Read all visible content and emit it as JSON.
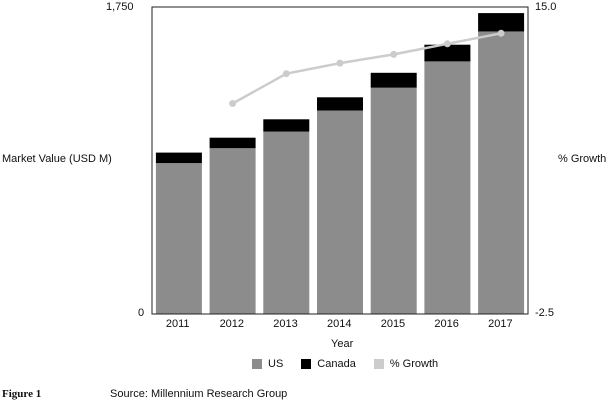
{
  "chart_data": {
    "type": "bar",
    "stacked": true,
    "categories": [
      "2011",
      "2012",
      "2013",
      "2014",
      "2015",
      "2016",
      "2017"
    ],
    "series": [
      {
        "name": "US",
        "axis": "left",
        "color": "#8c8c8c",
        "values": [
          860,
          945,
          1040,
          1160,
          1290,
          1440,
          1610
        ]
      },
      {
        "name": "Canada",
        "axis": "left",
        "color": "#000000",
        "values": [
          60,
          60,
          70,
          75,
          85,
          95,
          105
        ]
      },
      {
        "name": "% Growth",
        "axis": "right",
        "type": "line",
        "color": "#cccccc",
        "values": [
          null,
          9.5,
          11.2,
          11.8,
          12.3,
          12.9,
          13.5
        ]
      }
    ],
    "title": "",
    "xlabel": "Year",
    "ylabel": "Market Value (USD M)",
    "y2label": "% Growth",
    "ylim": [
      0,
      1750
    ],
    "y2lim": [
      -2.5,
      15.0
    ],
    "yticks": [
      "0",
      "1,750"
    ],
    "y2ticks": [
      "-2.5",
      "15.0"
    ],
    "legend": [
      "US",
      "Canada",
      "% Growth"
    ],
    "legend_position": "bottom"
  },
  "footer": {
    "figure_label": "Figure 1",
    "source": "Source: Millennium Research Group"
  }
}
